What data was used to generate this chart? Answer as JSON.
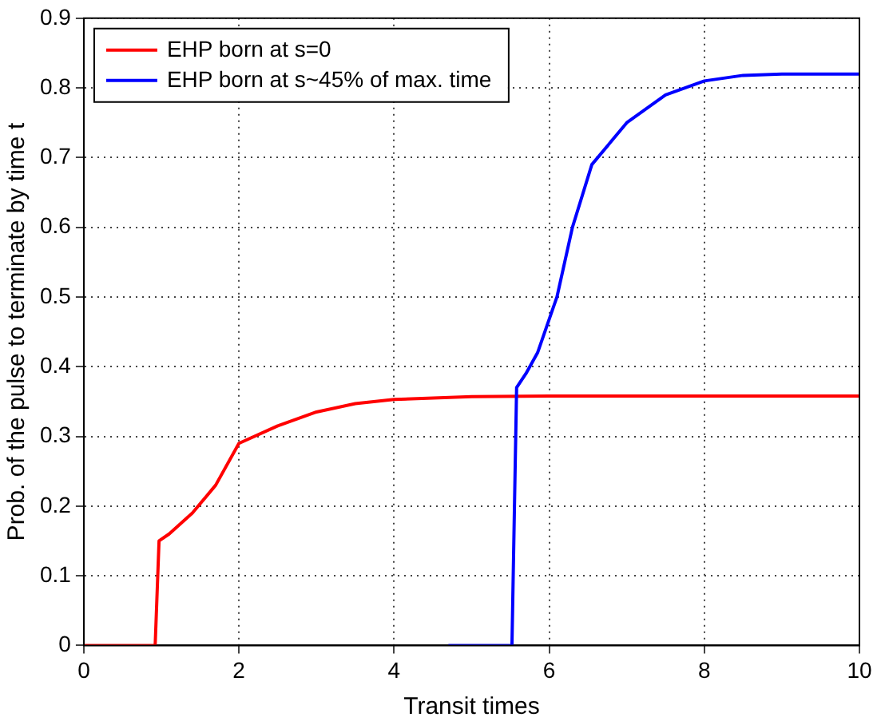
{
  "chart_data": {
    "type": "line",
    "xlabel": "Transit times",
    "ylabel": "Prob. of the pulse to terminate by time t",
    "xlim": [
      0,
      10
    ],
    "xticks": [
      0,
      2,
      4,
      6,
      8,
      10
    ],
    "ylim": [
      0,
      0.9
    ],
    "yticks": [
      0,
      0.1,
      0.2,
      0.3,
      0.4,
      0.5,
      0.6,
      0.7,
      0.8,
      0.9
    ],
    "grid": true,
    "legend": "top left",
    "line_style": "solid",
    "marker": "none",
    "series": [
      {
        "name": "EHP born at s=0",
        "color": "#ff0000",
        "x": [
          0,
          0.92,
          0.97,
          1.1,
          1.4,
          1.7,
          2.0,
          2.5,
          3,
          3.5,
          4,
          5,
          6,
          10
        ],
        "values": [
          0,
          0,
          0.15,
          0.16,
          0.19,
          0.23,
          0.29,
          0.315,
          0.335,
          0.347,
          0.353,
          0.357,
          0.358,
          0.358
        ]
      },
      {
        "name": "EHP born at s~45% of max. time",
        "color": "#0000ff",
        "x": [
          4.7,
          5.52,
          5.58,
          5.7,
          5.85,
          6.1,
          6.3,
          6.55,
          7,
          7.5,
          8,
          8.5,
          9,
          10
        ],
        "values": [
          0,
          0,
          0.37,
          0.39,
          0.42,
          0.5,
          0.6,
          0.69,
          0.75,
          0.79,
          0.81,
          0.818,
          0.82,
          0.82
        ]
      }
    ]
  }
}
